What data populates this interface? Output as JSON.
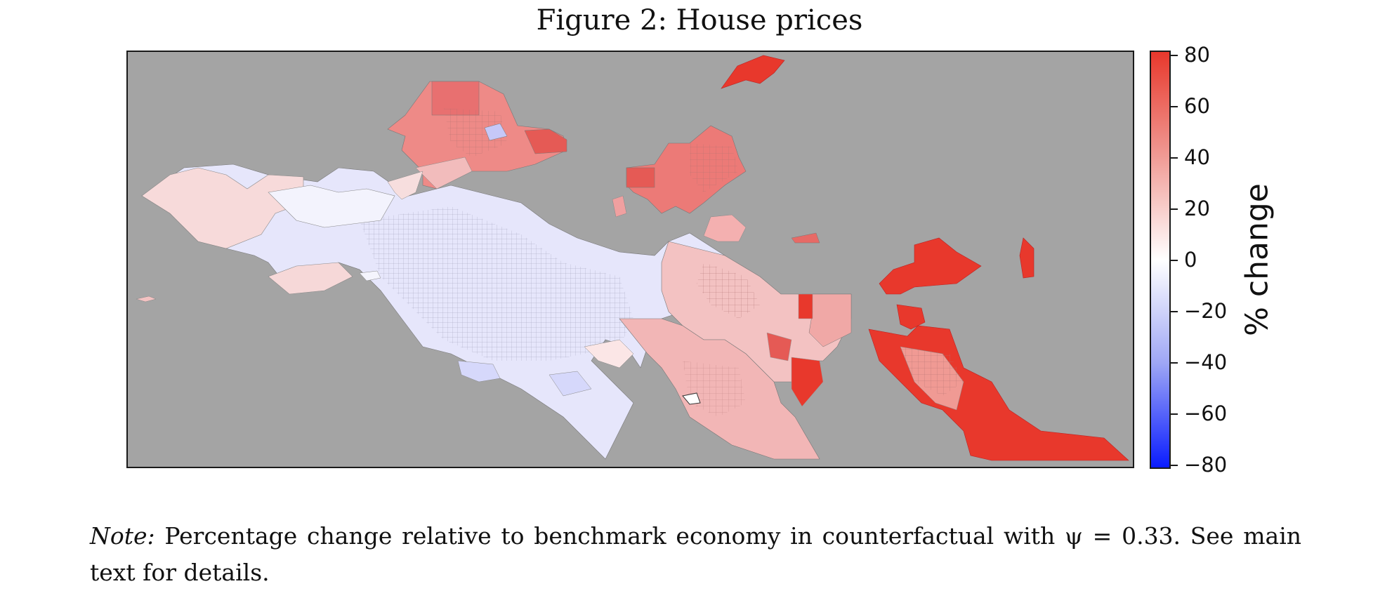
{
  "figure": {
    "title": "Figure 2: House prices"
  },
  "colorbar": {
    "label": "% change",
    "ticks": [
      "80",
      "60",
      "40",
      "20",
      "0",
      "−20",
      "−40",
      "−60",
      "−80"
    ],
    "colors": {
      "max": "#e8382c",
      "mid": "#ffffff",
      "min": "#0a1cff",
      "background": "#a4a4a4"
    }
  },
  "note": {
    "label": "Note:",
    "text": "Percentage change relative to benchmark economy in counterfactual with ψ = 0.33. See main text for details."
  }
}
